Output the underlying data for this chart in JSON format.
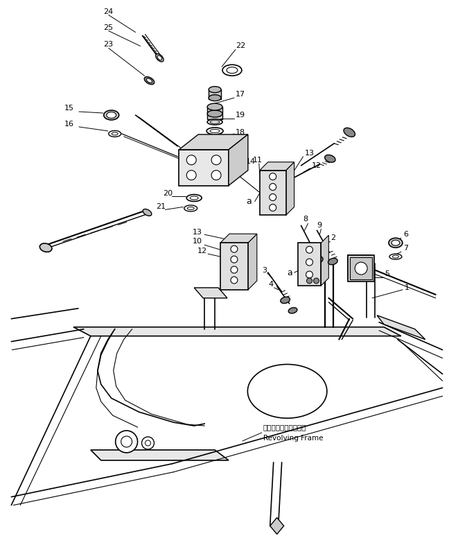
{
  "background_color": "#ffffff",
  "line_color": "#000000",
  "figsize": [
    6.48,
    7.99
  ],
  "dpi": 100,
  "text_revolving_jp": "レボルビングフレーム",
  "text_revolving_en": "Revolving Frame"
}
